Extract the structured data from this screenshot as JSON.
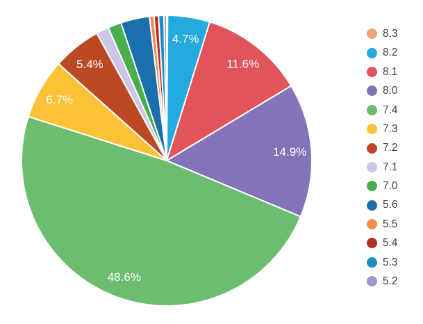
{
  "chart_data": {
    "type": "pie",
    "title": "",
    "legend_position": "right",
    "direction": "clockwise",
    "start_angle_deg": 0,
    "grid": false,
    "slice_border_color": "#ffffff",
    "slice_label_color": "#ffffff",
    "legend_text_color": "#3e3e3e",
    "background_color": "#ffffff",
    "categories": [
      "8.3",
      "8.2",
      "8.1",
      "8.0",
      "7.4",
      "7.3",
      "7.2",
      "7.1",
      "7.0",
      "5.6",
      "5.5",
      "5.4",
      "5.3",
      "5.2"
    ],
    "values": [
      0.1,
      4.7,
      11.6,
      14.9,
      48.6,
      6.7,
      5.4,
      1.4,
      1.5,
      3.2,
      0.5,
      0.5,
      0.6,
      0.3
    ],
    "slices": [
      {
        "name": "8.3",
        "value": 0.1,
        "label": "",
        "color": "#f2a479"
      },
      {
        "name": "8.2",
        "value": 4.7,
        "label": "4.7%",
        "color": "#25aadf"
      },
      {
        "name": "8.1",
        "value": 11.6,
        "label": "11.6%",
        "color": "#e0545a"
      },
      {
        "name": "8.0",
        "value": 14.9,
        "label": "14.9%",
        "color": "#8373b7"
      },
      {
        "name": "7.4",
        "value": 48.6,
        "label": "48.6%",
        "color": "#6dbd70"
      },
      {
        "name": "7.3",
        "value": 6.7,
        "label": "6.7%",
        "color": "#fcc237"
      },
      {
        "name": "7.2",
        "value": 5.4,
        "label": "5.4%",
        "color": "#bb4a24"
      },
      {
        "name": "7.1",
        "value": 1.4,
        "label": "",
        "color": "#cdc6e7"
      },
      {
        "name": "7.0",
        "value": 1.5,
        "label": "",
        "color": "#49ae4d"
      },
      {
        "name": "5.6",
        "value": 3.2,
        "label": "",
        "color": "#1a70ad"
      },
      {
        "name": "5.5",
        "value": 0.5,
        "label": "",
        "color": "#f28b4b"
      },
      {
        "name": "5.4",
        "value": 0.5,
        "label": "",
        "color": "#b52a25"
      },
      {
        "name": "5.3",
        "value": 0.6,
        "label": "",
        "color": "#1b8fc3"
      },
      {
        "name": "5.2",
        "value": 0.3,
        "label": "",
        "color": "#a195ce"
      }
    ],
    "legend_entries": [
      "8.3",
      "8.2",
      "8.1",
      "8.0",
      "7.4",
      "7.3",
      "7.2",
      "7.1",
      "7.0",
      "5.6",
      "5.5",
      "5.4",
      "5.3",
      "5.2"
    ]
  }
}
